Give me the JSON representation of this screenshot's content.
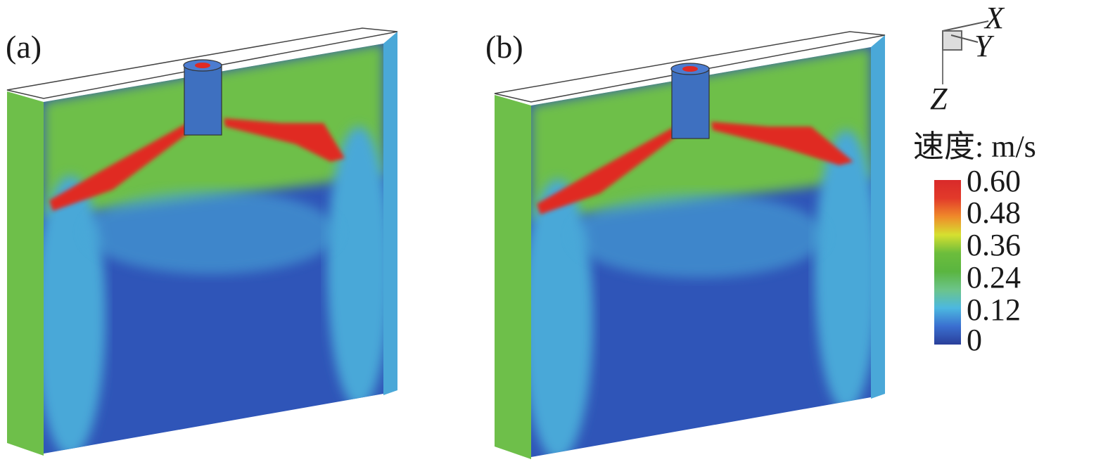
{
  "panels": [
    {
      "label": "(a)"
    },
    {
      "label": "(b)"
    }
  ],
  "axes_triad": {
    "x": "X",
    "y": "Y",
    "z": "Z"
  },
  "legend": {
    "title": "速度: m/s",
    "ticks": [
      "0.60",
      "0.48",
      "0.36",
      "0.24",
      "0.12",
      "0"
    ],
    "range": [
      0,
      0.6
    ],
    "colors": [
      "#2a3f9a",
      "#3a6fd0",
      "#4cb8e0",
      "#6cc48a",
      "#5ab540",
      "#6cbd3c",
      "#d6e030",
      "#ef8a2a",
      "#e23a2a",
      "#d92a2a"
    ]
  },
  "field_colors": {
    "low": "#2f55b8",
    "mid": "#4aa8d8",
    "green": "#6ebf4a",
    "high": "#e02a24"
  }
}
